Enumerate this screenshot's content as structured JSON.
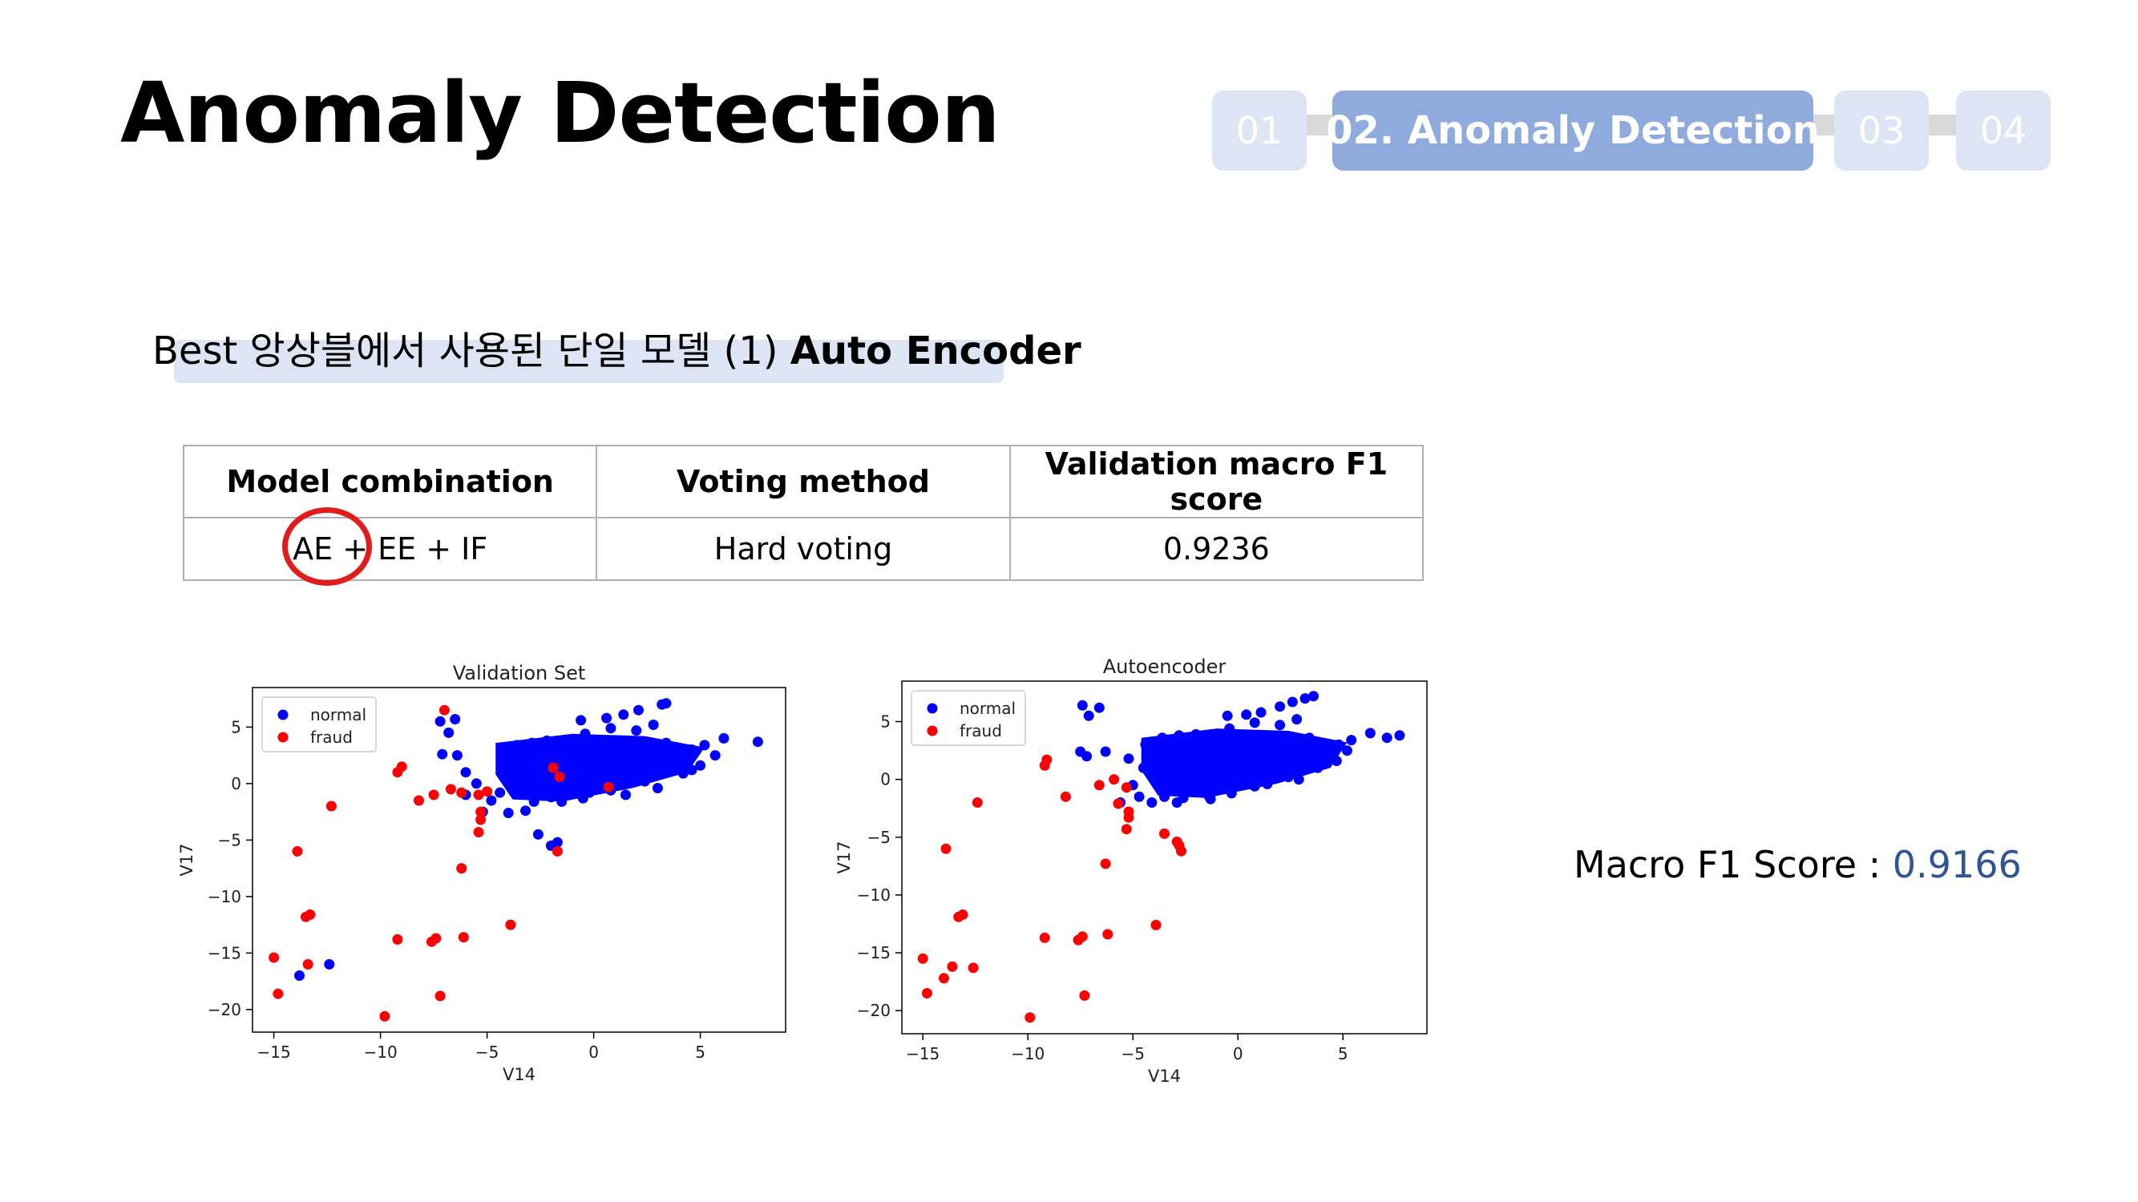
{
  "slide": {
    "title": "Anomaly Detection",
    "subtitle_prefix": "Best 앙상블에서 사용된 단일 모델 (1) ",
    "subtitle_bold": "Auto Encoder",
    "steps": [
      {
        "label": "01",
        "active": false
      },
      {
        "label": "02. Anomaly Detection",
        "active": true
      },
      {
        "label": "03",
        "active": false
      },
      {
        "label": "04",
        "active": false
      }
    ],
    "colors": {
      "step_active": "#8faadc",
      "step_inactive": "#dde5f4",
      "highlight": "#e21b1b",
      "score_value": "#2f5597"
    }
  },
  "table": {
    "headers": [
      "Model combination",
      "Voting method",
      "Validation macro F1 score"
    ],
    "rows": [
      [
        "AE + EE + IF",
        "Hard voting",
        "0.9236"
      ]
    ]
  },
  "score": {
    "label": "Macro F1 Score : ",
    "value": "0.9166"
  },
  "chart_data": [
    {
      "type": "scatter",
      "title": "Validation Set",
      "xlabel": "V14",
      "ylabel": "V17",
      "xlim": [
        -16,
        9
      ],
      "ylim": [
        -22,
        8.5
      ],
      "xticks": [
        -15,
        -10,
        -5,
        0,
        5
      ],
      "yticks": [
        5,
        0,
        -5,
        -10,
        -15,
        -20
      ],
      "legend_position": "top-left",
      "colors": {
        "normal": "#0000ff",
        "fraud": "#ff0000"
      },
      "series": [
        {
          "name": "normal",
          "points": [
            [
              -7.2,
              5.5
            ],
            [
              -6.5,
              5.7
            ],
            [
              -6.8,
              4.5
            ],
            [
              -7.1,
              2.6
            ],
            [
              -6.4,
              2.5
            ],
            [
              -6.0,
              1.0
            ],
            [
              -5.5,
              0.0
            ],
            [
              -6.0,
              -1.0
            ],
            [
              -5.2,
              -2.5
            ],
            [
              -4.8,
              -1.5
            ],
            [
              -2.6,
              -4.5
            ],
            [
              -2.0,
              -5.5
            ],
            [
              -1.7,
              -5.2
            ],
            [
              -4.0,
              -2.6
            ],
            [
              -4.4,
              -0.8
            ],
            [
              -3.9,
              2.2
            ],
            [
              -2.0,
              -0.5
            ],
            [
              -0.6,
              5.6
            ],
            [
              0.6,
              5.8
            ],
            [
              1.4,
              6.1
            ],
            [
              2.1,
              6.5
            ],
            [
              3.2,
              7.0
            ],
            [
              3.4,
              7.1
            ],
            [
              6.1,
              4.0
            ],
            [
              7.7,
              3.7
            ],
            [
              5.7,
              2.5
            ],
            [
              5.0,
              1.6
            ],
            [
              4.2,
              0.9
            ],
            [
              3.0,
              -0.4
            ],
            [
              1.5,
              -1.0
            ],
            [
              -0.5,
              -1.3
            ],
            [
              -2.0,
              -1.2
            ],
            [
              -3.2,
              -2.4
            ],
            [
              -13.8,
              -17.0
            ],
            [
              -12.4,
              -16.0
            ],
            [
              -4.3,
              3.0
            ],
            [
              -3.6,
              3.4
            ],
            [
              -2.9,
              3.6
            ],
            [
              -2.2,
              3.8
            ],
            [
              -1.5,
              3.4
            ],
            [
              -0.8,
              3.2
            ],
            [
              -3.8,
              1.4
            ],
            [
              -3.0,
              1.2
            ],
            [
              -2.2,
              1.6
            ],
            [
              -1.4,
              1.2
            ],
            [
              -0.6,
              1.4
            ],
            [
              0.2,
              1.8
            ],
            [
              1.0,
              2.4
            ],
            [
              1.8,
              2.8
            ],
            [
              2.6,
              3.2
            ],
            [
              3.4,
              3.6
            ],
            [
              4.0,
              2.6
            ],
            [
              4.6,
              3.0
            ],
            [
              5.2,
              3.4
            ],
            [
              -3.4,
              -0.2
            ],
            [
              -2.6,
              0.2
            ],
            [
              -1.8,
              -0.4
            ],
            [
              -1.0,
              0.0
            ],
            [
              -0.2,
              0.4
            ],
            [
              0.6,
              0.8
            ],
            [
              1.4,
              0.6
            ],
            [
              2.2,
              1.2
            ],
            [
              3.0,
              1.6
            ],
            [
              3.8,
              2.0
            ],
            [
              0.3,
              2.8
            ],
            [
              1.2,
              3.3
            ],
            [
              -0.4,
              4.4
            ],
            [
              0.8,
              4.9
            ],
            [
              2.0,
              4.7
            ],
            [
              2.8,
              5.2
            ],
            [
              4.6,
              1.2
            ],
            [
              -3.0,
              2.6
            ],
            [
              -2.2,
              2.8
            ],
            [
              -1.2,
              2.2
            ],
            [
              -0.2,
              2.2
            ],
            [
              0.8,
              -0.6
            ],
            [
              2.4,
              0.2
            ],
            [
              -2.8,
              -1.6
            ],
            [
              -1.5,
              -1.6
            ],
            [
              -0.2,
              -0.8
            ]
          ]
        },
        {
          "name": "fraud",
          "points": [
            [
              -7.0,
              6.5
            ],
            [
              -9.0,
              1.5
            ],
            [
              -9.2,
              1.0
            ],
            [
              -8.2,
              -1.5
            ],
            [
              -7.5,
              -1.0
            ],
            [
              -6.7,
              -0.5
            ],
            [
              -6.2,
              -0.8
            ],
            [
              -5.4,
              -1.0
            ],
            [
              -5.0,
              -0.7
            ],
            [
              -5.3,
              -2.5
            ],
            [
              -5.3,
              -3.2
            ],
            [
              -5.4,
              -4.3
            ],
            [
              -6.2,
              -7.5
            ],
            [
              -12.3,
              -2.0
            ],
            [
              -13.9,
              -6.0
            ],
            [
              -13.5,
              -11.8
            ],
            [
              -13.3,
              -11.6
            ],
            [
              -15.0,
              -15.4
            ],
            [
              -14.8,
              -18.6
            ],
            [
              -13.4,
              -16.0
            ],
            [
              -9.8,
              -20.6
            ],
            [
              -9.2,
              -13.8
            ],
            [
              -7.6,
              -14.0
            ],
            [
              -7.4,
              -13.7
            ],
            [
              -6.1,
              -13.6
            ],
            [
              -7.2,
              -18.8
            ],
            [
              -3.9,
              -12.5
            ],
            [
              -1.7,
              -6.0
            ],
            [
              -1.9,
              1.4
            ],
            [
              -1.6,
              0.6
            ],
            [
              0.7,
              -0.3
            ]
          ]
        }
      ]
    },
    {
      "type": "scatter",
      "title": "Autoencoder",
      "xlabel": "V14",
      "ylabel": "V17",
      "xlim": [
        -16,
        9
      ],
      "ylim": [
        -22,
        8.5
      ],
      "xticks": [
        -15,
        -10,
        -5,
        0,
        5
      ],
      "yticks": [
        5,
        0,
        -5,
        -10,
        -15,
        -20
      ],
      "legend_position": "top-left",
      "colors": {
        "normal": "#0000ff",
        "fraud": "#ff0000"
      },
      "series": [
        {
          "name": "normal",
          "points": [
            [
              -7.4,
              6.4
            ],
            [
              -6.6,
              6.2
            ],
            [
              -7.1,
              5.5
            ],
            [
              -7.5,
              2.4
            ],
            [
              -7.2,
              2.0
            ],
            [
              -6.3,
              2.4
            ],
            [
              -5.2,
              1.8
            ],
            [
              -4.5,
              1.0
            ],
            [
              -5.0,
              -0.5
            ],
            [
              -5.6,
              -2.0
            ],
            [
              -4.7,
              -1.5
            ],
            [
              -4.1,
              -2.0
            ],
            [
              -3.5,
              -1.5
            ],
            [
              -2.9,
              -2.0
            ],
            [
              -2.3,
              -1.0
            ],
            [
              -0.5,
              5.5
            ],
            [
              0.4,
              5.6
            ],
            [
              1.1,
              5.8
            ],
            [
              2.0,
              6.3
            ],
            [
              2.6,
              6.7
            ],
            [
              3.2,
              7.0
            ],
            [
              3.6,
              7.2
            ],
            [
              6.3,
              4.0
            ],
            [
              7.7,
              3.8
            ],
            [
              7.1,
              3.6
            ],
            [
              5.2,
              2.5
            ],
            [
              4.7,
              1.6
            ],
            [
              3.8,
              1.0
            ],
            [
              2.9,
              0.0
            ],
            [
              1.4,
              -0.4
            ],
            [
              -0.3,
              -1.2
            ],
            [
              -1.3,
              -1.7
            ],
            [
              -4.4,
              3.0
            ],
            [
              -3.6,
              3.6
            ],
            [
              -2.8,
              3.8
            ],
            [
              -2.0,
              3.9
            ],
            [
              -1.2,
              3.4
            ],
            [
              -0.4,
              3.2
            ],
            [
              -3.8,
              1.4
            ],
            [
              -3.0,
              1.2
            ],
            [
              -2.2,
              1.6
            ],
            [
              -1.4,
              1.2
            ],
            [
              -0.6,
              1.4
            ],
            [
              0.2,
              1.8
            ],
            [
              1.0,
              2.4
            ],
            [
              1.8,
              2.8
            ],
            [
              2.6,
              3.2
            ],
            [
              3.4,
              3.6
            ],
            [
              4.2,
              2.6
            ],
            [
              4.8,
              3.0
            ],
            [
              5.4,
              3.4
            ],
            [
              -3.4,
              -0.2
            ],
            [
              -2.6,
              0.2
            ],
            [
              -1.8,
              -0.4
            ],
            [
              -1.0,
              0.0
            ],
            [
              -0.2,
              0.4
            ],
            [
              0.6,
              0.8
            ],
            [
              1.4,
              0.6
            ],
            [
              2.2,
              1.2
            ],
            [
              3.0,
              1.6
            ],
            [
              3.8,
              2.0
            ],
            [
              0.3,
              2.8
            ],
            [
              1.2,
              3.3
            ],
            [
              -0.4,
              4.4
            ],
            [
              0.8,
              4.9
            ],
            [
              2.0,
              4.7
            ],
            [
              2.8,
              5.2
            ],
            [
              -3.0,
              2.6
            ],
            [
              -2.2,
              2.8
            ],
            [
              -1.2,
              2.2
            ],
            [
              -0.2,
              2.2
            ],
            [
              0.8,
              -0.6
            ],
            [
              2.4,
              0.2
            ],
            [
              -2.6,
              -1.6
            ],
            [
              -1.4,
              -1.4
            ]
          ]
        },
        {
          "name": "fraud",
          "points": [
            [
              -9.1,
              1.7
            ],
            [
              -9.2,
              1.2
            ],
            [
              -8.2,
              -1.5
            ],
            [
              -6.6,
              -0.5
            ],
            [
              -5.9,
              0.0
            ],
            [
              -5.3,
              -0.7
            ],
            [
              -5.7,
              -2.1
            ],
            [
              -5.2,
              -2.8
            ],
            [
              -5.2,
              -3.3
            ],
            [
              -5.3,
              -4.3
            ],
            [
              -3.5,
              -4.7
            ],
            [
              -2.9,
              -5.4
            ],
            [
              -2.8,
              -5.7
            ],
            [
              -2.7,
              -6.2
            ],
            [
              -6.3,
              -7.3
            ],
            [
              -12.4,
              -2.0
            ],
            [
              -13.9,
              -6.0
            ],
            [
              -13.3,
              -11.9
            ],
            [
              -13.1,
              -11.7
            ],
            [
              -15.0,
              -15.5
            ],
            [
              -14.8,
              -18.5
            ],
            [
              -13.6,
              -16.2
            ],
            [
              -12.6,
              -16.3
            ],
            [
              -14.0,
              -17.2
            ],
            [
              -9.9,
              -20.6
            ],
            [
              -9.2,
              -13.7
            ],
            [
              -7.6,
              -13.9
            ],
            [
              -7.4,
              -13.6
            ],
            [
              -6.2,
              -13.4
            ],
            [
              -7.3,
              -18.7
            ],
            [
              -3.9,
              -12.6
            ]
          ]
        }
      ]
    }
  ]
}
